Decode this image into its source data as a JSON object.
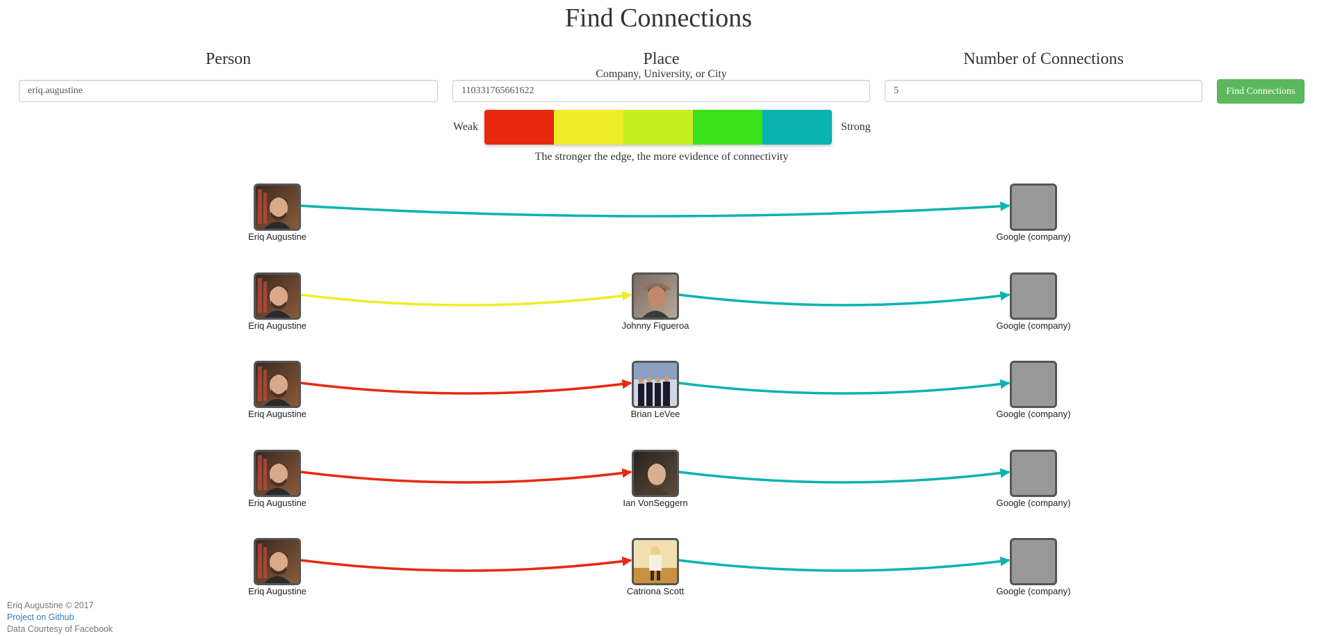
{
  "page": {
    "title": "Find Connections"
  },
  "form": {
    "person": {
      "heading": "Person",
      "value": "eriq.augustine"
    },
    "place": {
      "heading": "Place",
      "subheading": "Company, University, or City",
      "value": "110331765661622"
    },
    "count": {
      "heading": "Number of Connections",
      "value": "5"
    },
    "submit_label": "Find Connections"
  },
  "legend": {
    "weak_label": "Weak",
    "strong_label": "Strong",
    "caption": "The stronger the edge, the more evidence of connectivity",
    "colors": [
      "#e8290f",
      "#efec28",
      "#c6ec22",
      "#3ae01a",
      "#08b3b1"
    ]
  },
  "paths": [
    {
      "nodes": [
        {
          "label": "Eriq Augustine",
          "image": "photo-eriq"
        },
        {
          "label": "Google (company)",
          "image": "placeholder"
        }
      ],
      "edge_strengths": [
        "strong"
      ]
    },
    {
      "nodes": [
        {
          "label": "Eriq Augustine",
          "image": "photo-eriq"
        },
        {
          "label": "Johnny Figueroa",
          "image": "photo-johnny"
        },
        {
          "label": "Google (company)",
          "image": "placeholder"
        }
      ],
      "edge_strengths": [
        "medium-weak",
        "strong"
      ]
    },
    {
      "nodes": [
        {
          "label": "Eriq Augustine",
          "image": "photo-eriq"
        },
        {
          "label": "Brian LeVee",
          "image": "photo-brian"
        },
        {
          "label": "Google (company)",
          "image": "placeholder"
        }
      ],
      "edge_strengths": [
        "weak",
        "strong"
      ]
    },
    {
      "nodes": [
        {
          "label": "Eriq Augustine",
          "image": "photo-eriq"
        },
        {
          "label": "Ian VonSeggern",
          "image": "photo-ian"
        },
        {
          "label": "Google (company)",
          "image": "placeholder"
        }
      ],
      "edge_strengths": [
        "weak",
        "strong"
      ]
    },
    {
      "nodes": [
        {
          "label": "Eriq Augustine",
          "image": "photo-eriq"
        },
        {
          "label": "Catriona Scott",
          "image": "photo-catriona"
        },
        {
          "label": "Google (company)",
          "image": "placeholder"
        }
      ],
      "edge_strengths": [
        "weak",
        "strong"
      ]
    }
  ],
  "footer": {
    "copyright": "Eriq Augustine © 2017",
    "github_link": "Project on Github",
    "credit": "Data Courtesy of Facebook"
  }
}
